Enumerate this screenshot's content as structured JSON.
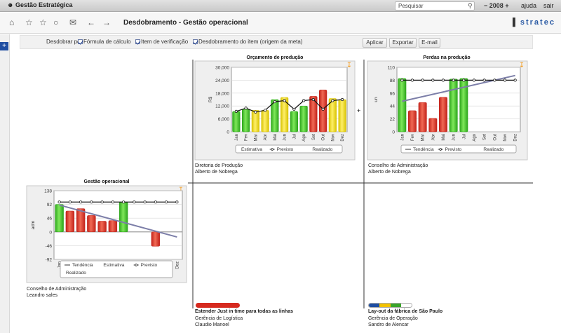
{
  "app": {
    "title": "Gestão Estratégica",
    "search_placeholder": "Pesquisar",
    "year": "2008",
    "year_prev": "−",
    "year_next": "+",
    "help": "ajuda",
    "exit": "sair"
  },
  "toolbar": {
    "page_title": "Desdobramento - Gestão operacional",
    "logo": "stratec",
    "icons": [
      "home-icon",
      "star-outline-icon",
      "star-icon",
      "comment-icon",
      "mail-icon",
      "arrow-left-icon",
      "arrow-right-icon"
    ]
  },
  "options": {
    "label": "Desdobrar por",
    "checks": [
      "Fórmula de cálculo",
      "Item de verificação",
      "Desdobramento do item (origem da meta)"
    ],
    "buttons": [
      "Aplicar",
      "Exportar",
      "E-mail"
    ]
  },
  "months": [
    "Jan",
    "Fev",
    "Mar",
    "Abr",
    "Mai",
    "Jun",
    "Jul",
    "Ago",
    "Set",
    "Out",
    "Nov",
    "Dez"
  ],
  "nodes": {
    "gestao": {
      "title": "Gestão operacional",
      "owner": "Conselho de Administração",
      "person": "Leandro sales"
    },
    "orcamento": {
      "title": "Orçamento de produção",
      "owner": "Diretoria de Produção",
      "person": "Alberto de Nobrega"
    },
    "perdas": {
      "title": "Perdas na produção",
      "owner": "Conselho de Administração",
      "person": "Alberto de Nobrega"
    },
    "just_in_time": {
      "title": "Estender Just in time para todas as linhas",
      "owner": "Gerência de Logística",
      "person": "Claudio Manoel",
      "progress_colors": [
        "#d62a1f"
      ]
    },
    "layout": {
      "title": "Lay-out da fábrica de São Paulo",
      "owner": "Gerência de Operação",
      "person": "Sandro de Alencar",
      "progress_colors": [
        "#1f4ea2",
        "#f2c200",
        "#3aa52a",
        "#ffffff"
      ]
    }
  },
  "legend": {
    "tendencia": "Tendência",
    "estimativa": "Estimativa",
    "previsto": "Previsto",
    "realizado": "Realizado"
  },
  "chart_data": [
    {
      "id": "gestao",
      "type": "bar",
      "title": "Gestão operacional",
      "ylabel": "adm",
      "ylim": [
        -92,
        138
      ],
      "yticks": [
        "138",
        "92",
        "46",
        "0",
        "-46",
        "-92"
      ],
      "categories": [
        "Jan",
        "Fev",
        "Mar",
        "Abr",
        "Mai",
        "Jun",
        "Jul",
        "Ago",
        "Set",
        "Out",
        "Nov",
        "Dez"
      ],
      "realizado": [
        92,
        70,
        78,
        55,
        36,
        38,
        100,
        null,
        null,
        -48,
        null,
        null
      ],
      "bar_colors": [
        "green",
        "red",
        "red",
        "red",
        "red",
        "red",
        "green",
        null,
        null,
        "red",
        null,
        null
      ],
      "previsto": [
        100,
        100,
        100,
        100,
        100,
        100,
        100,
        100,
        100,
        100,
        100,
        100
      ],
      "tendencia": [
        90,
        -17
      ],
      "legend": [
        "Tendência",
        "Estimativa",
        "Previsto",
        "Realizado"
      ]
    },
    {
      "id": "orcamento",
      "type": "bar",
      "title": "Orçamento de produção",
      "ylabel": "R$",
      "ylim": [
        0,
        30000
      ],
      "yticks": [
        "30,000",
        "24,000",
        "18,000",
        "12,000",
        "6,000",
        "0"
      ],
      "categories": [
        "Jan",
        "Fev",
        "Mar",
        "Abr",
        "Mai",
        "Jun",
        "Jul",
        "Ago",
        "Set",
        "Out",
        "Nov",
        "Dez"
      ],
      "realizado": [
        9500,
        10500,
        10000,
        10000,
        15000,
        16000,
        9500,
        12000,
        16500,
        19500,
        15500,
        15000
      ],
      "bar_colors": [
        "green",
        "green",
        "yellow",
        "yellow",
        "green",
        "yellow",
        "green",
        "green",
        "red",
        "red",
        "yellow",
        "yellow"
      ],
      "previsto": [
        9500,
        11000,
        9200,
        10000,
        14000,
        14500,
        10500,
        14500,
        15000,
        10500,
        14500,
        15000
      ],
      "legend": [
        "Estimativa",
        "Previsto",
        "Realizado"
      ]
    },
    {
      "id": "perdas",
      "type": "bar",
      "title": "Perdas na produção",
      "ylabel": "un",
      "ylim": [
        0,
        110
      ],
      "yticks": [
        "110",
        "88",
        "66",
        "44",
        "22",
        "0"
      ],
      "categories": [
        "Jan",
        "Fev",
        "Mar",
        "Abr",
        "Mai",
        "Jun",
        "Jul",
        "Ago",
        "Set",
        "Out",
        "Nov",
        "Dez"
      ],
      "realizado": [
        91,
        36,
        50,
        23,
        59,
        90,
        91,
        null,
        null,
        null,
        null,
        null
      ],
      "bar_colors": [
        "green",
        "red",
        "red",
        "red",
        "red",
        "green",
        "green",
        null,
        null,
        null,
        null,
        null
      ],
      "previsto": [
        88,
        88,
        88,
        88,
        88,
        88,
        88,
        88,
        88,
        88,
        88,
        88
      ],
      "tendencia": [
        52,
        96
      ],
      "legend": [
        "Tendência",
        "Previsto",
        "Realizado"
      ]
    }
  ]
}
